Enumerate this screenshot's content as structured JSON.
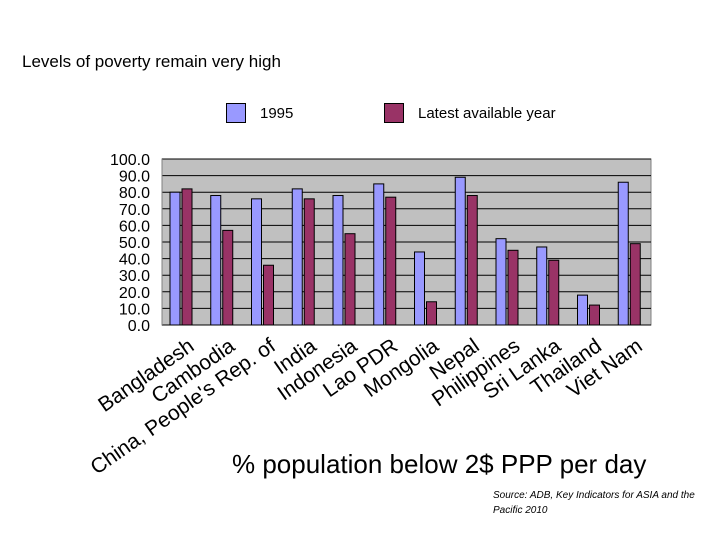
{
  "slide": {
    "title": "Levels of poverty remain very high",
    "caption": "% population below 2$ PPP per day",
    "source": "Source: ADB, Key Indicators for ASIA and the Pacific 2010"
  },
  "colors": {
    "series1": "#9999ff",
    "series2": "#993366",
    "plot_bg": "#c0c0c0"
  },
  "chart_data": {
    "type": "bar",
    "title": "Levels of poverty remain very high",
    "xlabel": "",
    "ylabel": "% population below 2$ PPP per day",
    "ylim": [
      0,
      100
    ],
    "yticks": [
      "100.0",
      "90.0",
      "80.0",
      "70.0",
      "60.0",
      "50.0",
      "40.0",
      "30.0",
      "20.0",
      "10.0",
      "0.0"
    ],
    "grid": true,
    "legend_position": "top",
    "categories": [
      "Bangladesh",
      "Cambodia",
      "China, People's Rep. of",
      "India",
      "Indonesia",
      "Lao PDR",
      "Mongolia",
      "Nepal",
      "Philippines",
      "Sri Lanka",
      "Thailand",
      "Viet Nam"
    ],
    "series": [
      {
        "name": "1995",
        "color": "#9999ff",
        "values": [
          80,
          78,
          76,
          82,
          78,
          85,
          44,
          89,
          52,
          47,
          18,
          86
        ]
      },
      {
        "name": "Latest available year",
        "color": "#993366",
        "values": [
          82,
          57,
          36,
          76,
          55,
          77,
          14,
          78,
          45,
          39,
          12,
          49
        ]
      }
    ]
  }
}
